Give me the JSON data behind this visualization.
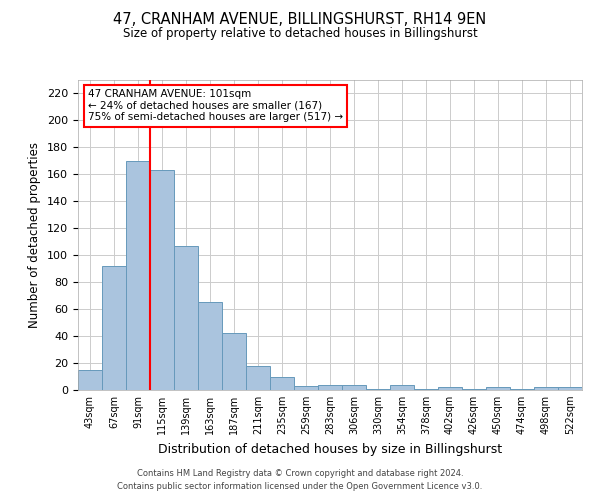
{
  "title_line1": "47, CRANHAM AVENUE, BILLINGSHURST, RH14 9EN",
  "title_line2": "Size of property relative to detached houses in Billingshurst",
  "xlabel": "Distribution of detached houses by size in Billingshurst",
  "ylabel": "Number of detached properties",
  "categories": [
    "43sqm",
    "67sqm",
    "91sqm",
    "115sqm",
    "139sqm",
    "163sqm",
    "187sqm",
    "211sqm",
    "235sqm",
    "259sqm",
    "283sqm",
    "306sqm",
    "330sqm",
    "354sqm",
    "378sqm",
    "402sqm",
    "426sqm",
    "450sqm",
    "474sqm",
    "498sqm",
    "522sqm"
  ],
  "values": [
    15,
    92,
    170,
    163,
    107,
    65,
    42,
    18,
    10,
    3,
    4,
    4,
    1,
    4,
    1,
    2,
    1,
    2,
    1,
    2,
    2
  ],
  "bar_color": "#aac4de",
  "bar_edge_color": "#6699bb",
  "ylim": [
    0,
    230
  ],
  "yticks": [
    0,
    20,
    40,
    60,
    80,
    100,
    120,
    140,
    160,
    180,
    200,
    220
  ],
  "property_label": "47 CRANHAM AVENUE: 101sqm",
  "annotation_line1": "← 24% of detached houses are smaller (167)",
  "annotation_line2": "75% of semi-detached houses are larger (517) →",
  "red_line_x": 2.5,
  "footer_line1": "Contains HM Land Registry data © Crown copyright and database right 2024.",
  "footer_line2": "Contains public sector information licensed under the Open Government Licence v3.0.",
  "background_color": "#ffffff",
  "grid_color": "#cccccc"
}
